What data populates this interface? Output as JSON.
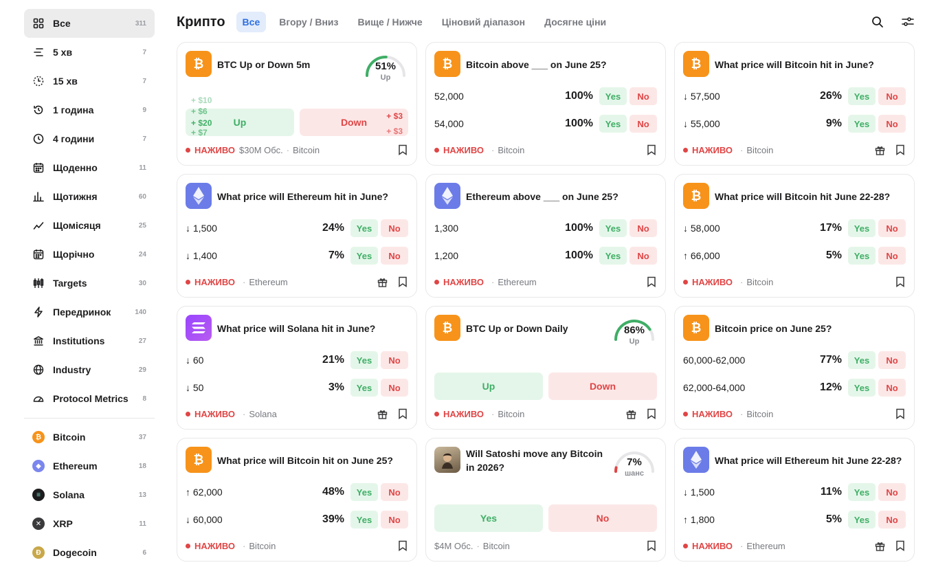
{
  "sidebar": {
    "items": [
      {
        "label": "Все",
        "count": "311",
        "icon": "grid-icon"
      },
      {
        "label": "5 хв",
        "count": "7",
        "icon": "lines-icon"
      },
      {
        "label": "15 хв",
        "count": "7",
        "icon": "dashed-circle-icon"
      },
      {
        "label": "1 година",
        "count": "9",
        "icon": "clock-arrow-icon"
      },
      {
        "label": "4 години",
        "count": "7",
        "icon": "clock-icon"
      },
      {
        "label": "Щоденно",
        "count": "11",
        "icon": "calendar-icon"
      },
      {
        "label": "Щотижня",
        "count": "60",
        "icon": "bar-chart-icon"
      },
      {
        "label": "Щомісяця",
        "count": "25",
        "icon": "trend-icon"
      },
      {
        "label": "Щорічно",
        "count": "24",
        "icon": "calendar-icon"
      },
      {
        "label": "Targets",
        "count": "30",
        "icon": "candles-icon"
      },
      {
        "label": "Передринок",
        "count": "140",
        "icon": "bolt-icon"
      },
      {
        "label": "Institutions",
        "count": "27",
        "icon": "bank-icon"
      },
      {
        "label": "Industry",
        "count": "29",
        "icon": "globe-icon"
      },
      {
        "label": "Protocol Metrics",
        "count": "8",
        "icon": "gauge-icon"
      }
    ],
    "coins": [
      {
        "label": "Bitcoin",
        "count": "37",
        "color": "#f7931a",
        "glyph": "₿"
      },
      {
        "label": "Ethereum",
        "count": "18",
        "color": "#7b86ee",
        "glyph": "◆"
      },
      {
        "label": "Solana",
        "count": "13",
        "color": "#1c1c1e",
        "glyph": "≡"
      },
      {
        "label": "XRP",
        "count": "11",
        "color": "#3a3a3c",
        "glyph": "✕"
      },
      {
        "label": "Dogecoin",
        "count": "6",
        "color": "#c9a84a",
        "glyph": "Ð"
      }
    ]
  },
  "header": {
    "title": "Крипто",
    "tabs": [
      "Все",
      "Вгору / Вниз",
      "Вище / Нижче",
      "Ціновий діапазон",
      "Досягне ціни"
    ]
  },
  "labels": {
    "yes": "Yes",
    "no": "No",
    "live": "НАЖИВО",
    "up": "Up",
    "down": "Down"
  },
  "cards": [
    {
      "title": "BTC Up or Down 5m",
      "coin": "Bitcoin",
      "gauge": "51%",
      "gauge_sub": "Up",
      "volume": "$30M Обс.",
      "floats_green": [
        "+ $10",
        "+ $6",
        "+ $20",
        "+ $7"
      ],
      "floats_red": [
        "+ $3",
        "+ $3"
      ]
    },
    {
      "title": "Bitcoin above ___ on June 25?",
      "coin": "Bitcoin",
      "rows": [
        {
          "label": "52,000",
          "pct": "100%"
        },
        {
          "label": "54,000",
          "pct": "100%"
        }
      ]
    },
    {
      "title": "What price will Bitcoin hit in June?",
      "coin": "Bitcoin",
      "rows": [
        {
          "label": "↓ 57,500",
          "pct": "26%"
        },
        {
          "label": "↓ 55,000",
          "pct": "9%"
        }
      ]
    },
    {
      "title": "What price will Ethereum hit in June?",
      "coin": "Ethereum",
      "rows": [
        {
          "label": "↓ 1,500",
          "pct": "24%"
        },
        {
          "label": "↓ 1,400",
          "pct": "7%"
        }
      ]
    },
    {
      "title": "Ethereum above ___ on June 25?",
      "coin": "Ethereum",
      "rows": [
        {
          "label": "1,300",
          "pct": "100%"
        },
        {
          "label": "1,200",
          "pct": "100%"
        }
      ]
    },
    {
      "title": "What price will Bitcoin hit June 22-28?",
      "coin": "Bitcoin",
      "rows": [
        {
          "label": "↓ 58,000",
          "pct": "17%"
        },
        {
          "label": "↑ 66,000",
          "pct": "5%"
        }
      ]
    },
    {
      "title": "What price will Solana hit in June?",
      "coin": "Solana",
      "rows": [
        {
          "label": "↓ 60",
          "pct": "21%"
        },
        {
          "label": "↓ 50",
          "pct": "3%"
        }
      ]
    },
    {
      "title": "BTC Up or Down Daily",
      "coin": "Bitcoin",
      "gauge": "86%",
      "gauge_sub": "Up"
    },
    {
      "title": "Bitcoin price on June 25?",
      "coin": "Bitcoin",
      "rows": [
        {
          "label": "60,000-62,000",
          "pct": "77%"
        },
        {
          "label": "62,000-64,000",
          "pct": "12%"
        }
      ]
    },
    {
      "title": "What price will Bitcoin hit on June 25?",
      "coin": "Bitcoin",
      "rows": [
        {
          "label": "↑ 62,000",
          "pct": "48%"
        },
        {
          "label": "↓ 60,000",
          "pct": "39%"
        }
      ]
    },
    {
      "title": "Will Satoshi move any Bitcoin in 2026?",
      "coin": "Bitcoin",
      "gauge": "7%",
      "gauge_sub": "шанс",
      "volume": "$4M Обс."
    },
    {
      "title": "What price will Ethereum hit June 22-28?",
      "coin": "Ethereum",
      "rows": [
        {
          "label": "↓ 1,500",
          "pct": "11%"
        },
        {
          "label": "↑ 1,800",
          "pct": "5%"
        }
      ]
    }
  ]
}
